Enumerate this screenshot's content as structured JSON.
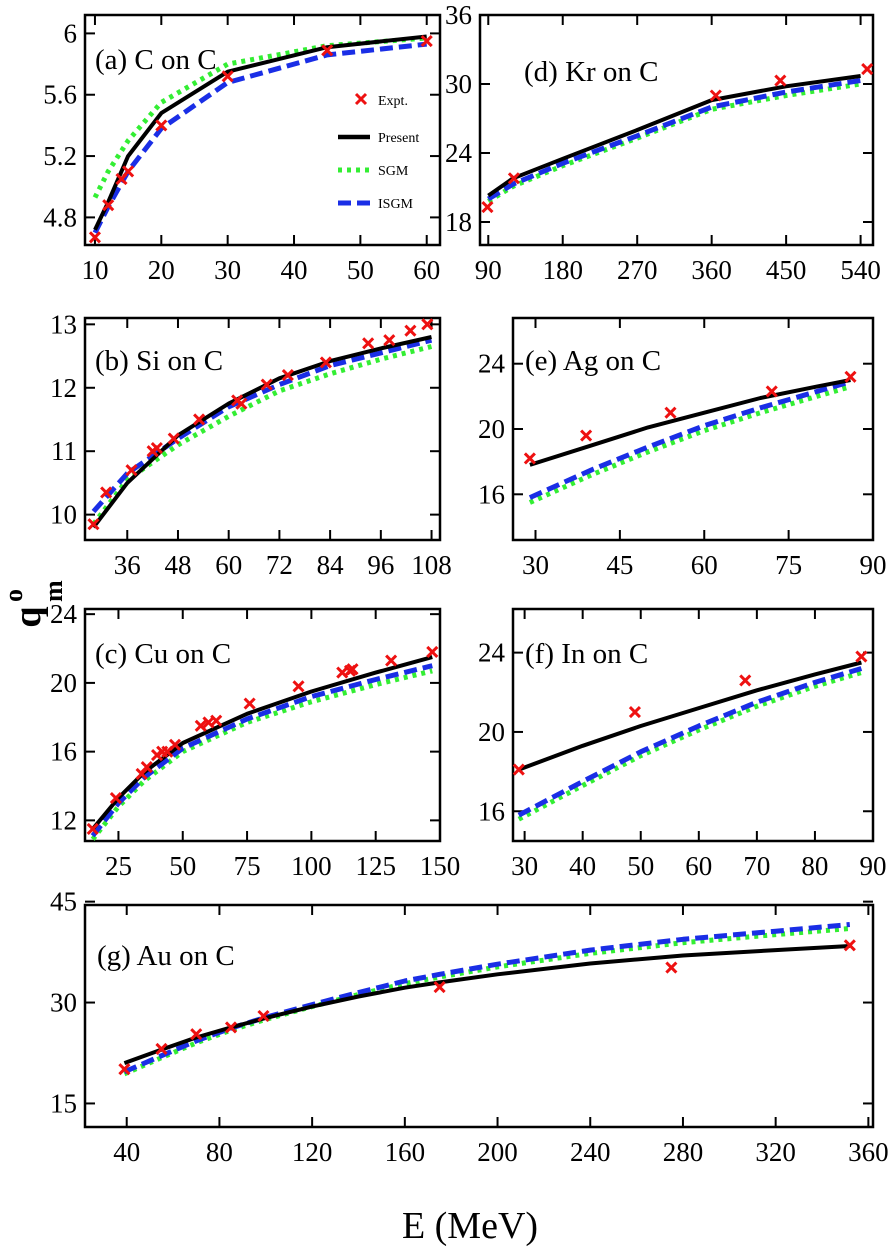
{
  "figure": {
    "x_title": "E (MeV)",
    "y_title": "q",
    "y_title_sup": "o",
    "y_title_sub": "m"
  },
  "colors": {
    "present": "#000000",
    "sgm": "#33ee33",
    "isgm": "#1a2ee6",
    "expt": "#ee1111"
  },
  "legend": {
    "entries": [
      "Expt.",
      "Present",
      "SGM",
      "ISGM"
    ]
  },
  "chart_data": [
    {
      "id": "a",
      "type": "line",
      "title": "(a) C on C",
      "xlim": [
        8.5,
        62
      ],
      "ylim": [
        4.62,
        6.12
      ],
      "xticks": [
        10,
        20,
        30,
        40,
        50,
        60
      ],
      "xtick_labels": [
        "10",
        "20",
        "30",
        "40",
        "50",
        "60"
      ],
      "yticks": [
        4.8,
        5.2,
        5.6,
        6.0
      ],
      "ytick_labels": [
        "4.8",
        "5.2",
        "5.6",
        "6"
      ],
      "series": [
        {
          "name": "Present",
          "x": [
            10,
            12,
            15,
            20,
            30,
            45,
            60
          ],
          "y": [
            4.72,
            4.9,
            5.2,
            5.48,
            5.75,
            5.91,
            5.98
          ]
        },
        {
          "name": "SGM",
          "x": [
            10,
            12,
            15,
            20,
            30,
            45,
            60
          ],
          "y": [
            4.93,
            5.1,
            5.3,
            5.55,
            5.8,
            5.92,
            5.97
          ]
        },
        {
          "name": "ISGM",
          "x": [
            10,
            12,
            15,
            20,
            30,
            45,
            60
          ],
          "y": [
            4.7,
            4.87,
            5.1,
            5.38,
            5.68,
            5.86,
            5.93
          ]
        }
      ],
      "expt": {
        "x": [
          10,
          12,
          14,
          15,
          20,
          30,
          45,
          60
        ],
        "y": [
          4.67,
          4.88,
          5.05,
          5.1,
          5.4,
          5.72,
          5.89,
          5.95
        ]
      }
    },
    {
      "id": "d",
      "type": "line",
      "title": "(d) Kr on C",
      "xlim": [
        80,
        555
      ],
      "ylim": [
        16,
        36
      ],
      "xticks": [
        90,
        180,
        270,
        360,
        450,
        540
      ],
      "xtick_labels": [
        "90",
        "180",
        "270",
        "360",
        "450",
        "540"
      ],
      "yticks": [
        18,
        24,
        30,
        36
      ],
      "ytick_labels": [
        "18",
        "24",
        "30",
        "36"
      ],
      "series": [
        {
          "name": "Present",
          "x": [
            90,
            120,
            180,
            270,
            360,
            450,
            540
          ],
          "y": [
            20.3,
            21.8,
            23.5,
            26.0,
            28.6,
            29.8,
            30.7
          ]
        },
        {
          "name": "SGM",
          "x": [
            90,
            120,
            180,
            270,
            360,
            450,
            540
          ],
          "y": [
            19.8,
            21.1,
            22.9,
            25.3,
            27.8,
            29.0,
            30.0
          ]
        },
        {
          "name": "ISGM",
          "x": [
            90,
            120,
            180,
            270,
            360,
            450,
            540
          ],
          "y": [
            20.0,
            21.3,
            23.1,
            25.5,
            28.0,
            29.3,
            30.3
          ]
        }
      ],
      "expt": {
        "x": [
          89,
          121,
          365,
          443,
          548
        ],
        "y": [
          19.3,
          21.8,
          29.0,
          30.3,
          31.3
        ]
      }
    },
    {
      "id": "b",
      "type": "line",
      "title": "(b) Si on C",
      "xlim": [
        26,
        110
      ],
      "ylim": [
        9.6,
        13.1
      ],
      "xticks": [
        36,
        48,
        60,
        72,
        84,
        96,
        108
      ],
      "xtick_labels": [
        "36",
        "48",
        "60",
        "72",
        "84",
        "96",
        "108"
      ],
      "yticks": [
        10,
        11,
        12,
        13
      ],
      "ytick_labels": [
        "10",
        "11",
        "12",
        "13"
      ],
      "series": [
        {
          "name": "Present",
          "x": [
            28,
            36,
            48,
            60,
            72,
            84,
            96,
            108
          ],
          "y": [
            9.8,
            10.5,
            11.25,
            11.75,
            12.15,
            12.42,
            12.62,
            12.8
          ]
        },
        {
          "name": "SGM",
          "x": [
            28,
            36,
            48,
            60,
            72,
            84,
            96,
            108
          ],
          "y": [
            9.85,
            10.55,
            11.1,
            11.55,
            11.95,
            12.22,
            12.45,
            12.65
          ]
        },
        {
          "name": "ISGM",
          "x": [
            28,
            36,
            48,
            60,
            72,
            84,
            96,
            108
          ],
          "y": [
            10.05,
            10.65,
            11.2,
            11.7,
            12.05,
            12.35,
            12.55,
            12.75
          ]
        }
      ],
      "expt": {
        "x": [
          28,
          31,
          37,
          42,
          43,
          47,
          53,
          62,
          63,
          69,
          74,
          83,
          93,
          98,
          103,
          107
        ],
        "y": [
          9.85,
          10.35,
          10.7,
          11.0,
          11.05,
          11.2,
          11.5,
          11.8,
          11.75,
          12.05,
          12.2,
          12.4,
          12.7,
          12.75,
          12.9,
          13.0
        ]
      }
    },
    {
      "id": "e",
      "type": "line",
      "title": "(e) Ag on C",
      "xlim": [
        26,
        90
      ],
      "ylim": [
        13.2,
        26.8
      ],
      "xticks": [
        30,
        45,
        60,
        75,
        90
      ],
      "xtick_labels": [
        "30",
        "45",
        "60",
        "75",
        "90"
      ],
      "yticks": [
        16,
        20,
        24
      ],
      "ytick_labels": [
        "16",
        "20",
        "24"
      ],
      "series": [
        {
          "name": "Present",
          "x": [
            29,
            40,
            50,
            60,
            70,
            80,
            86
          ],
          "y": [
            17.8,
            19.0,
            20.1,
            21.0,
            21.9,
            22.6,
            23.0
          ]
        },
        {
          "name": "SGM",
          "x": [
            29,
            40,
            50,
            60,
            70,
            80,
            86
          ],
          "y": [
            15.5,
            17.2,
            18.6,
            19.9,
            21.0,
            22.0,
            22.6
          ]
        },
        {
          "name": "ISGM",
          "x": [
            29,
            40,
            50,
            60,
            70,
            80,
            86
          ],
          "y": [
            15.8,
            17.5,
            18.9,
            20.2,
            21.3,
            22.3,
            22.9
          ]
        }
      ],
      "expt": {
        "x": [
          29,
          39,
          54,
          72,
          86
        ],
        "y": [
          18.2,
          19.6,
          21.0,
          22.3,
          23.2
        ]
      }
    },
    {
      "id": "c",
      "type": "line",
      "title": "(c) Cu on C",
      "xlim": [
        12,
        150
      ],
      "ylim": [
        10.8,
        24.3
      ],
      "xticks": [
        25,
        50,
        75,
        100,
        125,
        150
      ],
      "xtick_labels": [
        "25",
        "50",
        "75",
        "100",
        "125",
        "150"
      ],
      "yticks": [
        12,
        16,
        20,
        24
      ],
      "ytick_labels": [
        "12",
        "16",
        "20",
        "24"
      ],
      "series": [
        {
          "name": "Present",
          "x": [
            15,
            25,
            35,
            50,
            75,
            100,
            125,
            147
          ],
          "y": [
            11.5,
            13.3,
            14.8,
            16.5,
            18.2,
            19.5,
            20.6,
            21.5
          ]
        },
        {
          "name": "SGM",
          "x": [
            15,
            25,
            35,
            50,
            75,
            100,
            125,
            147
          ],
          "y": [
            10.9,
            12.8,
            14.3,
            16.0,
            17.7,
            18.9,
            19.9,
            20.7
          ]
        },
        {
          "name": "ISGM",
          "x": [
            15,
            25,
            35,
            50,
            75,
            100,
            125,
            147
          ],
          "y": [
            11.1,
            13.0,
            14.5,
            16.2,
            17.9,
            19.2,
            20.2,
            21.0
          ]
        }
      ],
      "expt": {
        "x": [
          15,
          24,
          34,
          36,
          40,
          42,
          44,
          47,
          57,
          60,
          63,
          76,
          95,
          112,
          115,
          116,
          131,
          147
        ],
        "y": [
          11.5,
          13.3,
          14.7,
          15.1,
          15.8,
          16.0,
          16.0,
          16.4,
          17.5,
          17.7,
          17.8,
          18.8,
          19.8,
          20.6,
          20.7,
          20.8,
          21.3,
          21.8
        ]
      }
    },
    {
      "id": "f",
      "type": "line",
      "title": "(f) In on C",
      "xlim": [
        28,
        90
      ],
      "ylim": [
        14.5,
        26.2
      ],
      "xticks": [
        30,
        40,
        50,
        60,
        70,
        80,
        90
      ],
      "xtick_labels": [
        "30",
        "40",
        "50",
        "60",
        "70",
        "80",
        "90"
      ],
      "yticks": [
        16,
        20,
        24
      ],
      "ytick_labels": [
        "16",
        "20",
        "24"
      ],
      "series": [
        {
          "name": "Present",
          "x": [
            29,
            40,
            50,
            60,
            70,
            80,
            88
          ],
          "y": [
            18.1,
            19.3,
            20.3,
            21.2,
            22.1,
            22.9,
            23.5
          ]
        },
        {
          "name": "SGM",
          "x": [
            29,
            40,
            50,
            60,
            70,
            80,
            88
          ],
          "y": [
            15.6,
            17.3,
            18.8,
            20.1,
            21.3,
            22.3,
            23.0
          ]
        },
        {
          "name": "ISGM",
          "x": [
            29,
            40,
            50,
            60,
            70,
            80,
            88
          ],
          "y": [
            15.8,
            17.5,
            19.0,
            20.3,
            21.5,
            22.5,
            23.2
          ]
        }
      ],
      "expt": {
        "x": [
          29,
          49,
          68,
          88
        ],
        "y": [
          18.1,
          21.0,
          22.6,
          23.8
        ]
      }
    },
    {
      "id": "g",
      "type": "line",
      "title": "(g) Au on C",
      "xlim": [
        22,
        362
      ],
      "ylim": [
        11.5,
        44.5
      ],
      "xticks": [
        40,
        80,
        120,
        160,
        200,
        240,
        280,
        320,
        360
      ],
      "xtick_labels": [
        "40",
        "80",
        "120",
        "160",
        "200",
        "240",
        "280",
        "320",
        "360"
      ],
      "yticks": [
        15,
        30,
        45
      ],
      "ytick_labels": [
        "15",
        "30",
        "45"
      ],
      "series": [
        {
          "name": "Present",
          "x": [
            39,
            55,
            70,
            85,
            100,
            120,
            140,
            160,
            175,
            200,
            240,
            280,
            320,
            352
          ],
          "y": [
            21.0,
            23.0,
            24.8,
            26.3,
            27.7,
            29.4,
            30.9,
            32.2,
            33.0,
            34.2,
            35.8,
            37.0,
            37.8,
            38.4
          ]
        },
        {
          "name": "SGM",
          "x": [
            39,
            55,
            70,
            85,
            100,
            120,
            140,
            160,
            175,
            200,
            240,
            280,
            320,
            352
          ],
          "y": [
            19.4,
            21.8,
            24.0,
            25.9,
            27.5,
            29.4,
            31.2,
            32.8,
            33.8,
            35.3,
            37.3,
            38.9,
            40.1,
            41.0
          ]
        },
        {
          "name": "ISGM",
          "x": [
            39,
            55,
            70,
            85,
            100,
            120,
            140,
            160,
            175,
            200,
            240,
            280,
            320,
            352
          ],
          "y": [
            19.7,
            22.1,
            24.3,
            26.2,
            27.8,
            29.7,
            31.5,
            33.2,
            34.2,
            35.7,
            37.8,
            39.4,
            40.6,
            41.6
          ]
        }
      ],
      "expt": {
        "x": [
          39,
          55,
          70,
          85,
          99,
          175,
          275,
          352
        ],
        "y": [
          20.1,
          23.1,
          25.3,
          26.3,
          28.0,
          32.3,
          35.2,
          38.5
        ]
      }
    }
  ]
}
